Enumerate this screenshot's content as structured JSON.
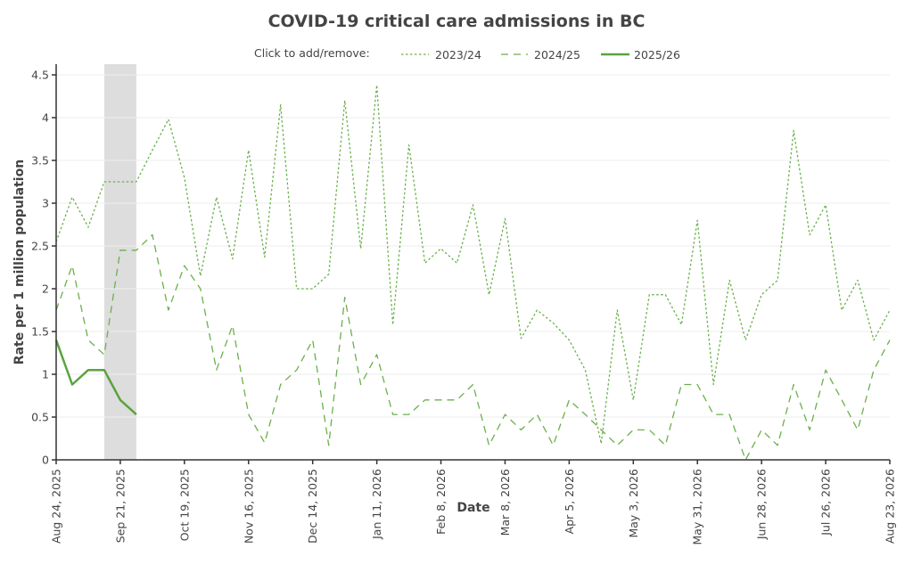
{
  "chart_data": {
    "type": "line",
    "title": "COVID-19 critical care admissions in BC",
    "xlabel": "Date",
    "ylabel": "Rate per 1 million population",
    "ylim": [
      0,
      4.6
    ],
    "yticks": [
      0,
      0.5,
      1,
      1.5,
      2,
      2.5,
      3,
      3.5,
      4,
      4.5
    ],
    "ytick_labels": [
      "0",
      "0.5",
      "1",
      "1.5",
      "2",
      "2.5",
      "3",
      "3.5",
      "4",
      "4.5"
    ],
    "x_unit": "week index from Aug 24, 2025",
    "xlim": [
      0,
      52
    ],
    "xticks": [
      0,
      4,
      8,
      12,
      16,
      20,
      24,
      28,
      32,
      36,
      40,
      44,
      48,
      52
    ],
    "xtick_labels": [
      "Aug 24, 2025",
      "Sep 21, 2025",
      "Oct 19, 2025",
      "Nov 16, 2025",
      "Dec 14, 2025",
      "Jan 11, 2026",
      "Feb 8, 2026",
      "Mar 8, 2026",
      "Apr 5, 2026",
      "May 3, 2026",
      "May 31, 2026",
      "Jun 28, 2026",
      "Jul 26, 2026",
      "Aug 23, 2026"
    ],
    "grid": true,
    "highlight_band": {
      "x_start": 3,
      "x_end": 5,
      "color": "#dddddd"
    },
    "legend": {
      "prompt": "Click to add/remove:",
      "placement": "top-center"
    },
    "series": [
      {
        "name": "2023/24",
        "style": "dotted",
        "color": "#6ab04c",
        "values": [
          2.55,
          3.07,
          2.72,
          3.25,
          3.25,
          3.25,
          3.62,
          3.98,
          3.3,
          2.15,
          3.07,
          2.35,
          3.62,
          2.37,
          4.15,
          2.0,
          2.0,
          2.17,
          4.2,
          2.47,
          4.38,
          1.58,
          3.68,
          2.3,
          2.47,
          2.3,
          2.98,
          1.93,
          2.82,
          1.42,
          1.75,
          1.6,
          1.4,
          1.05,
          0.19,
          1.75,
          0.7,
          1.93,
          1.93,
          1.58,
          2.8,
          0.88,
          2.1,
          1.4,
          1.93,
          2.1,
          3.85,
          2.63,
          2.98,
          1.75,
          2.1,
          1.4,
          1.75
        ]
      },
      {
        "name": "2024/25",
        "style": "dashed",
        "color": "#6ab04c",
        "values": [
          1.75,
          2.27,
          1.4,
          1.23,
          2.45,
          2.45,
          2.63,
          1.75,
          2.27,
          2.0,
          1.05,
          1.57,
          0.53,
          0.2,
          0.88,
          1.05,
          1.4,
          0.17,
          1.9,
          0.88,
          1.23,
          0.53,
          0.53,
          0.7,
          0.7,
          0.7,
          0.88,
          0.17,
          0.53,
          0.35,
          0.53,
          0.17,
          0.7,
          0.53,
          0.35,
          0.17,
          0.35,
          0.35,
          0.17,
          0.88,
          0.88,
          0.53,
          0.53,
          0.0,
          0.35,
          0.17,
          0.88,
          0.35,
          1.05,
          0.7,
          0.35,
          1.05,
          1.4
        ]
      },
      {
        "name": "2025/26",
        "style": "solid",
        "color": "#5aa33f",
        "values": [
          1.4,
          0.88,
          1.05,
          1.05,
          0.7,
          0.53
        ]
      }
    ]
  }
}
